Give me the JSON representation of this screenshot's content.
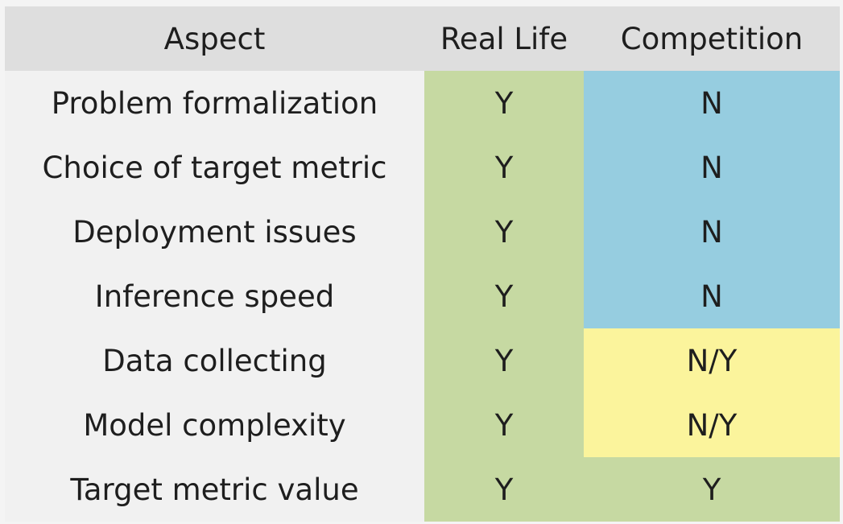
{
  "table": {
    "header": [
      "Aspect",
      "Real Life",
      "Competition"
    ],
    "rows": [
      [
        "Problem formalization",
        "Y",
        "N"
      ],
      [
        "Choice of target metric",
        "Y",
        "N"
      ],
      [
        "Deployment issues",
        "Y",
        "N"
      ],
      [
        "Inference speed",
        "Y",
        "N"
      ],
      [
        "Data collecting",
        "Y",
        "N/Y"
      ],
      [
        "Model complexity",
        "Y",
        "N/Y"
      ],
      [
        "Target metric value",
        "Y",
        "Y"
      ]
    ]
  }
}
